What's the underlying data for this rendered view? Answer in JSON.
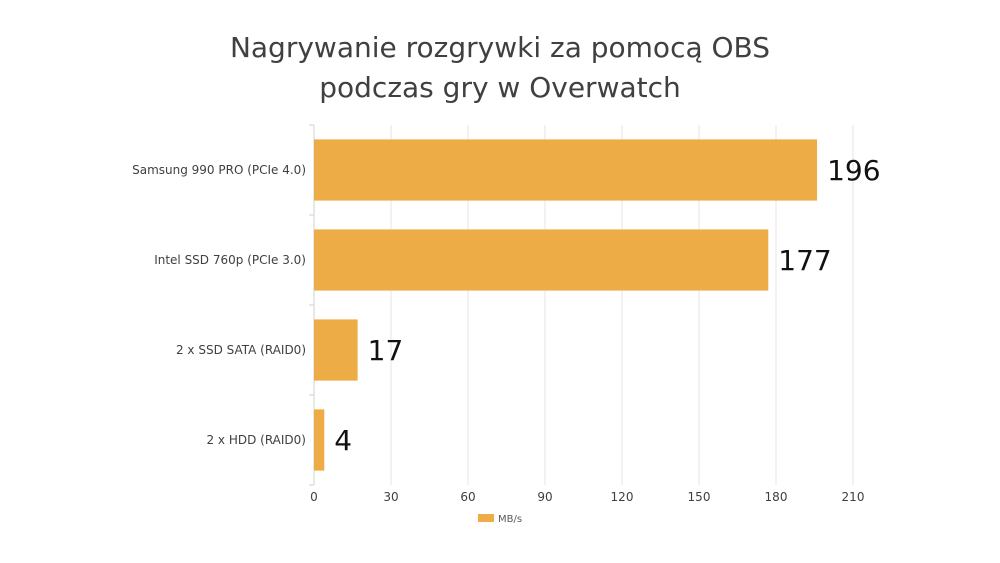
{
  "chart_data": {
    "type": "bar",
    "orientation": "horizontal",
    "title_lines": [
      "Nagrywanie rozgrywki za pomocą OBS",
      "podczas gry w Overwatch"
    ],
    "categories": [
      "Samsung 990 PRO (PCIe 4.0)",
      "Intel SSD 760p (PCIe 3.0)",
      "2 x SSD SATA (RAID0)",
      "2 x HDD (RAID0)"
    ],
    "series": [
      {
        "name": "MB/s",
        "values": [
          196,
          177,
          17,
          4
        ],
        "color": "#EDAC45"
      }
    ],
    "xlim": [
      0,
      210
    ],
    "xticks": [
      0,
      30,
      60,
      90,
      120,
      150,
      180,
      210
    ],
    "grid": true,
    "legend_position": "bottom"
  }
}
